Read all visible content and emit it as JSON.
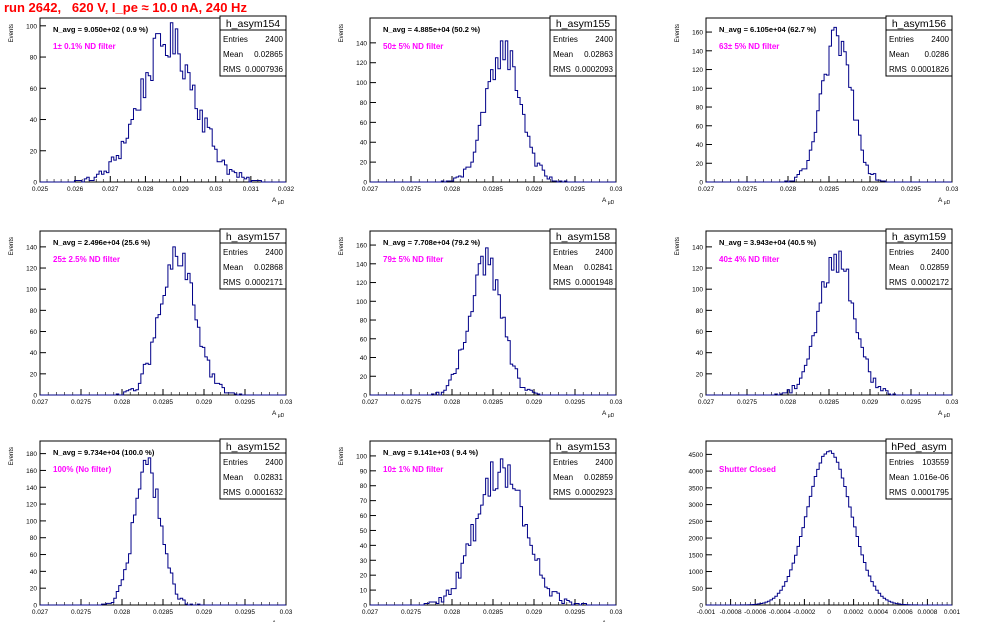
{
  "page": {
    "title": "run 2642,   620 V, I_pe ≈ 10.0 nA, 240 Hz"
  },
  "colors": {
    "histogram": "#000088",
    "title": "#ff0000",
    "filter_label": "#ff00ff",
    "axis": "#000000"
  },
  "chart_data": [
    {
      "type": "histogram",
      "name": "h_asym154",
      "stats": {
        "entries": "2400",
        "mean": "0.02865",
        "rms": "0.0007936"
      },
      "navg": "N_avg = 9.050e+02 ( 0.9 %)",
      "filter": "1± 0.1% ND filter",
      "xlabel": "A_{μD}",
      "ylabel": "Events",
      "xlim": [
        0.025,
        0.032
      ],
      "ylim": [
        0,
        105
      ],
      "xticks": [
        0.025,
        0.026,
        0.027,
        0.028,
        0.029,
        0.03,
        0.031,
        0.032
      ],
      "xtick_labels": [
        "0.025",
        "0.026",
        "0.027",
        "0.028",
        "0.029",
        "0.03",
        "0.031",
        "0.032"
      ],
      "yticks": [
        0,
        20,
        40,
        60,
        80,
        100
      ],
      "ytick_labels": [
        "0",
        "20",
        "40",
        "60",
        "80",
        "100"
      ],
      "gauss": {
        "mu": 0.02865,
        "sigma": 0.000794,
        "peak": 90
      }
    },
    {
      "type": "histogram",
      "name": "h_asym155",
      "stats": {
        "entries": "2400",
        "mean": "0.02863",
        "rms": "0.0002093"
      },
      "navg": "N_avg = 4.885e+04 (50.2 %)",
      "filter": "50± 5% ND filter",
      "xlabel": "A_{μD}",
      "ylabel": "Events",
      "xlim": [
        0.027,
        0.03
      ],
      "ylim": [
        0,
        165
      ],
      "xticks": [
        0.027,
        0.0275,
        0.028,
        0.0285,
        0.029,
        0.0295,
        0.03
      ],
      "xtick_labels": [
        "0.027",
        "0.0275",
        "0.028",
        "0.0285",
        "0.029",
        "0.0295",
        "0.03"
      ],
      "yticks": [
        0,
        20,
        40,
        60,
        80,
        100,
        120,
        140
      ],
      "ytick_labels": [
        "0",
        "20",
        "40",
        "60",
        "80",
        "100",
        "120",
        "140"
      ],
      "gauss": {
        "mu": 0.02863,
        "sigma": 0.000209,
        "peak": 133
      }
    },
    {
      "type": "histogram",
      "name": "h_asym156",
      "stats": {
        "entries": "2400",
        "mean": "0.0286",
        "rms": "0.0001826"
      },
      "navg": "N_avg = 6.105e+04 (62.7 %)",
      "filter": "63± 5% ND filter",
      "xlabel": "A_{μD}",
      "ylabel": "Events",
      "xlim": [
        0.027,
        0.03
      ],
      "ylim": [
        0,
        175
      ],
      "xticks": [
        0.027,
        0.0275,
        0.028,
        0.0285,
        0.029,
        0.0295,
        0.03
      ],
      "xtick_labels": [
        "0.027",
        "0.0275",
        "0.028",
        "0.0285",
        "0.029",
        "0.0295",
        "0.03"
      ],
      "yticks": [
        0,
        20,
        40,
        60,
        80,
        100,
        120,
        140,
        160
      ],
      "ytick_labels": [
        "0",
        "20",
        "40",
        "60",
        "80",
        "100",
        "120",
        "140",
        "160"
      ],
      "gauss": {
        "mu": 0.0286,
        "sigma": 0.000183,
        "peak": 152
      }
    },
    {
      "type": "histogram",
      "name": "h_asym157",
      "stats": {
        "entries": "2400",
        "mean": "0.02868",
        "rms": "0.0002171"
      },
      "navg": "N_avg = 2.496e+04 (25.6 %)",
      "filter": "25± 2.5% ND filter",
      "xlabel": "A_{μD}",
      "ylabel": "Events",
      "xlim": [
        0.027,
        0.03
      ],
      "ylim": [
        0,
        155
      ],
      "xticks": [
        0.027,
        0.0275,
        0.028,
        0.0285,
        0.029,
        0.0295,
        0.03
      ],
      "xtick_labels": [
        "0.027",
        "0.0275",
        "0.028",
        "0.0285",
        "0.029",
        "0.0295",
        "0.03"
      ],
      "yticks": [
        0,
        20,
        40,
        60,
        80,
        100,
        120,
        140
      ],
      "ytick_labels": [
        "0",
        "20",
        "40",
        "60",
        "80",
        "100",
        "120",
        "140"
      ],
      "gauss": {
        "mu": 0.02868,
        "sigma": 0.000217,
        "peak": 128
      }
    },
    {
      "type": "histogram",
      "name": "h_asym158",
      "stats": {
        "entries": "2400",
        "mean": "0.02841",
        "rms": "0.0001948"
      },
      "navg": "N_avg = 7.708e+04 (79.2 %)",
      "filter": "79± 5% ND filter",
      "xlabel": "A_{μD}",
      "ylabel": "Events",
      "xlim": [
        0.027,
        0.03
      ],
      "ylim": [
        0,
        175
      ],
      "xticks": [
        0.027,
        0.0275,
        0.028,
        0.0285,
        0.029,
        0.0295,
        0.03
      ],
      "xtick_labels": [
        "0.027",
        "0.0275",
        "0.028",
        "0.0285",
        "0.029",
        "0.0295",
        "0.03"
      ],
      "yticks": [
        0,
        20,
        40,
        60,
        80,
        100,
        120,
        140,
        160
      ],
      "ytick_labels": [
        "0",
        "20",
        "40",
        "60",
        "80",
        "100",
        "120",
        "140",
        "160"
      ],
      "gauss": {
        "mu": 0.02841,
        "sigma": 0.000195,
        "peak": 145
      }
    },
    {
      "type": "histogram",
      "name": "h_asym159",
      "stats": {
        "entries": "2400",
        "mean": "0.02859",
        "rms": "0.0002172"
      },
      "navg": "N_avg = 3.943e+04 (40.5 %)",
      "filter": "40± 4% ND filter",
      "xlabel": "A_{μD}",
      "ylabel": "Events",
      "xlim": [
        0.027,
        0.03
      ],
      "ylim": [
        0,
        155
      ],
      "xticks": [
        0.027,
        0.0275,
        0.028,
        0.0285,
        0.029,
        0.0295,
        0.03
      ],
      "xtick_labels": [
        "0.027",
        "0.0275",
        "0.028",
        "0.0285",
        "0.029",
        "0.0295",
        "0.03"
      ],
      "yticks": [
        0,
        20,
        40,
        60,
        80,
        100,
        120,
        140
      ],
      "ytick_labels": [
        "0",
        "20",
        "40",
        "60",
        "80",
        "100",
        "120",
        "140"
      ],
      "gauss": {
        "mu": 0.02859,
        "sigma": 0.000217,
        "peak": 130
      }
    },
    {
      "type": "histogram",
      "name": "h_asym152",
      "stats": {
        "entries": "2400",
        "mean": "0.02831",
        "rms": "0.0001632"
      },
      "navg": "N_avg = 9.734e+04 (100.0 %)",
      "filter": "100% (No filter)",
      "xlabel": "A_{μD}",
      "ylabel": "Events",
      "xlim": [
        0.027,
        0.03
      ],
      "ylim": [
        0,
        195
      ],
      "xticks": [
        0.027,
        0.0275,
        0.028,
        0.0285,
        0.029,
        0.0295,
        0.03
      ],
      "xtick_labels": [
        "0.027",
        "0.0275",
        "0.028",
        "0.0285",
        "0.029",
        "0.0295",
        "0.03"
      ],
      "yticks": [
        0,
        20,
        40,
        60,
        80,
        100,
        120,
        140,
        160,
        180
      ],
      "ytick_labels": [
        "0",
        "20",
        "40",
        "60",
        "80",
        "100",
        "120",
        "140",
        "160",
        "180"
      ],
      "gauss": {
        "mu": 0.02831,
        "sigma": 0.000163,
        "peak": 165
      }
    },
    {
      "type": "histogram",
      "name": "h_asym153",
      "stats": {
        "entries": "2400",
        "mean": "0.02859",
        "rms": "0.0002923"
      },
      "navg": "N_avg = 9.141e+03 ( 9.4 %)",
      "filter": "10± 1% ND filter",
      "xlabel": "A_{μD}",
      "ylabel": "Events",
      "xlim": [
        0.027,
        0.03
      ],
      "ylim": [
        0,
        110
      ],
      "xticks": [
        0.027,
        0.0275,
        0.028,
        0.0285,
        0.029,
        0.0295,
        0.03
      ],
      "xtick_labels": [
        "0.027",
        "0.0275",
        "0.028",
        "0.0285",
        "0.029",
        "0.0295",
        "0.03"
      ],
      "yticks": [
        0,
        10,
        20,
        30,
        40,
        50,
        60,
        70,
        80,
        90,
        100
      ],
      "ytick_labels": [
        "0",
        "10",
        "20",
        "30",
        "40",
        "50",
        "60",
        "70",
        "80",
        "90",
        "100"
      ],
      "gauss": {
        "mu": 0.02859,
        "sigma": 0.000292,
        "peak": 92
      }
    },
    {
      "type": "histogram",
      "name": "hPed_asym",
      "stats": {
        "entries": "103559",
        "mean": "1.016e-06",
        "rms": "0.0001795"
      },
      "navg": "",
      "filter": "Shutter Closed",
      "xlabel": "",
      "ylabel": "",
      "xlim": [
        -0.001,
        0.001
      ],
      "ylim": [
        0,
        4900
      ],
      "xticks": [
        -0.001,
        -0.0008,
        -0.0006,
        -0.0004,
        -0.0002,
        0,
        0.0002,
        0.0004,
        0.0006,
        0.0008,
        0.001
      ],
      "xtick_labels": [
        "-0.001",
        "-0.0008",
        "-0.0006",
        "-0.0004",
        "-0.0002",
        "0",
        "0.0002",
        "0.0004",
        "0.0006",
        "0.0008",
        "0.001"
      ],
      "yticks": [
        0,
        500,
        1000,
        1500,
        2000,
        2500,
        3000,
        3500,
        4000,
        4500
      ],
      "ytick_labels": [
        "0",
        "500",
        "1000",
        "1500",
        "2000",
        "2500",
        "3000",
        "3500",
        "4000",
        "4500"
      ],
      "gauss": {
        "mu": 0.0,
        "sigma": 0.00018,
        "peak": 4600
      }
    }
  ]
}
